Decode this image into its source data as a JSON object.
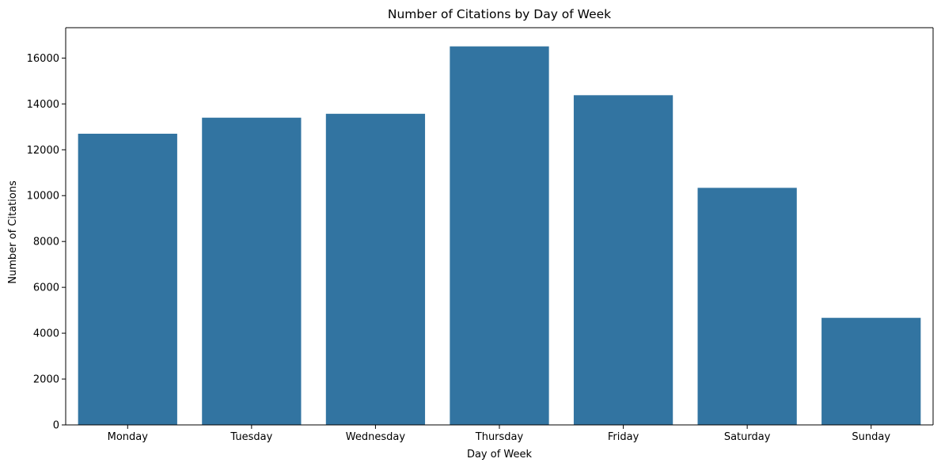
{
  "chart_data": {
    "type": "bar",
    "title": "Number of Citations by Day of Week",
    "xlabel": "Day of Week",
    "ylabel": "Number of Citations",
    "categories": [
      "Monday",
      "Tuesday",
      "Wednesday",
      "Thursday",
      "Friday",
      "Saturday",
      "Sunday"
    ],
    "values": [
      12700,
      13400,
      13570,
      16510,
      14380,
      10340,
      4670
    ],
    "ylim": [
      0,
      17325
    ],
    "yticks": [
      0,
      2000,
      4000,
      6000,
      8000,
      10000,
      12000,
      14000,
      16000
    ],
    "bar_color": "#3274a1",
    "grid": false,
    "legend": "none"
  }
}
